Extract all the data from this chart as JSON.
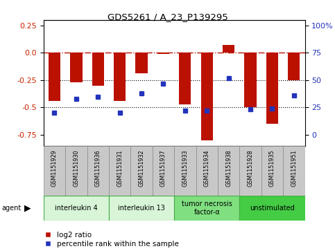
{
  "title": "GDS5261 / A_23_P139295",
  "samples": [
    "GSM1151929",
    "GSM1151930",
    "GSM1151936",
    "GSM1151931",
    "GSM1151932",
    "GSM1151937",
    "GSM1151933",
    "GSM1151934",
    "GSM1151938",
    "GSM1151928",
    "GSM1151935",
    "GSM1151951"
  ],
  "log2_ratio": [
    -0.44,
    -0.27,
    -0.3,
    -0.44,
    -0.19,
    -0.01,
    -0.47,
    -0.8,
    0.07,
    -0.5,
    -0.65,
    -0.25
  ],
  "percentile": [
    20,
    33,
    35,
    20,
    38,
    47,
    22,
    22,
    52,
    23,
    24,
    36
  ],
  "agents": [
    {
      "label": "interleukin 4",
      "start": 0,
      "end": 3,
      "color": "#d8f5d8"
    },
    {
      "label": "interleukin 13",
      "start": 3,
      "end": 6,
      "color": "#d8f5d8"
    },
    {
      "label": "tumor necrosis\nfactor-α",
      "start": 6,
      "end": 9,
      "color": "#80e080"
    },
    {
      "label": "unstimulated",
      "start": 9,
      "end": 12,
      "color": "#44cc44"
    }
  ],
  "ylim": [
    -0.85,
    0.3
  ],
  "yticks_left": [
    0.25,
    0.0,
    -0.25,
    -0.5,
    -0.75
  ],
  "ytick_right_labels": [
    "100%",
    "75",
    "50",
    "25",
    "0"
  ],
  "bar_color": "#bb1100",
  "dot_color": "#2233bb",
  "hline_y": 0.0,
  "dotted_lines": [
    -0.25,
    -0.5
  ],
  "pct_scale_min": -0.75,
  "pct_scale_max": 0.25,
  "legend_labels": [
    "log2 ratio",
    "percentile rank within the sample"
  ]
}
